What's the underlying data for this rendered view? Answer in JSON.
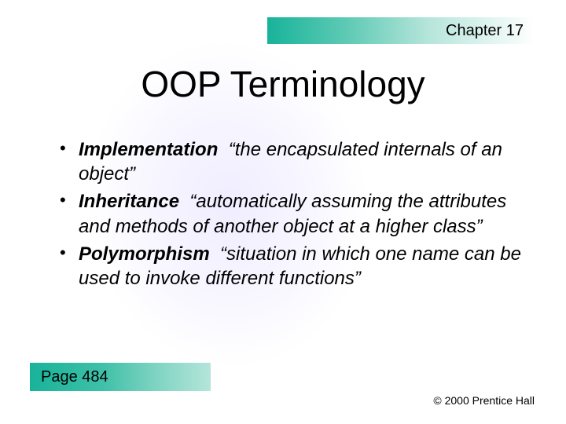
{
  "header": {
    "chapter_label": "Chapter 17",
    "bar_gradient_start": "#18b39a",
    "bar_gradient_end": "#ffffff"
  },
  "title": "OOP Terminology",
  "bullets": [
    {
      "term": "Implementation",
      "definition": "“the encapsulated internals of an object”"
    },
    {
      "term": "Inheritance",
      "definition": "“automatically assuming the attributes and methods of another object at a higher class”"
    },
    {
      "term": "Polymorphism",
      "definition": "“situation in which one name can be used to invoke different functions”"
    }
  ],
  "footer": {
    "page_label": "Page 484",
    "copyright": "© 2000 Prentice Hall",
    "bar_gradient_start": "#18b39a",
    "bar_gradient_end": "#b5e5da"
  },
  "styling": {
    "background_color": "#ffffff",
    "title_fontsize": 46,
    "body_fontsize": 24,
    "small_fontsize": 14,
    "font_family": "Comic Sans MS",
    "text_color": "#000000",
    "bg_shape_tint": "#e6e1ff"
  }
}
